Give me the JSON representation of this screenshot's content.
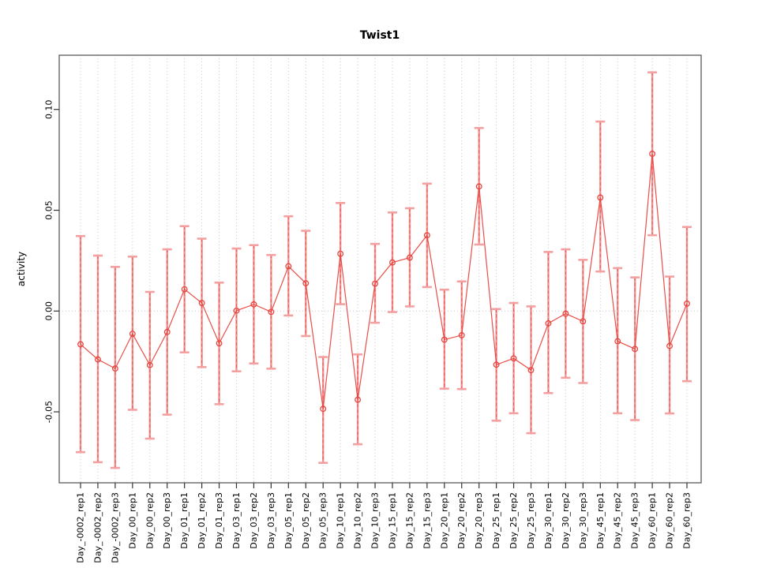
{
  "chart_data": {
    "type": "line",
    "title": "Twist1",
    "xlabel": "",
    "ylabel": "activity",
    "legend": "none",
    "grid": "vertical dotted gridline at each category; horizontal dotted line at y=0",
    "marker": "open-circle",
    "error_bars": true,
    "yticks": [
      -0.05,
      0.0,
      0.05,
      0.1
    ],
    "ylim": [
      -0.0852,
      0.1269
    ],
    "categories": [
      "Day_-0002_rep1",
      "Day_-0002_rep2",
      "Day_-0002_rep3",
      "Day_00_rep1",
      "Day_00_rep2",
      "Day_00_rep3",
      "Day_01_rep1",
      "Day_01_rep2",
      "Day_01_rep3",
      "Day_03_rep1",
      "Day_03_rep2",
      "Day_03_rep3",
      "Day_05_rep1",
      "Day_05_rep2",
      "Day_05_rep3",
      "Day_10_rep1",
      "Day_10_rep2",
      "Day_10_rep3",
      "Day_15_rep1",
      "Day_15_rep2",
      "Day_15_rep3",
      "Day_20_rep1",
      "Day_20_rep2",
      "Day_20_rep3",
      "Day_25_rep1",
      "Day_25_rep2",
      "Day_25_rep3",
      "Day_30_rep1",
      "Day_30_rep2",
      "Day_30_rep3",
      "Day_45_rep1",
      "Day_45_rep2",
      "Day_45_rep3",
      "Day_60_rep1",
      "Day_60_rep2",
      "Day_60_rep3"
    ],
    "values": [
      -0.0165,
      -0.024,
      -0.0285,
      -0.0113,
      -0.0268,
      -0.0104,
      0.0108,
      0.004,
      -0.016,
      0.0002,
      0.0033,
      -0.0004,
      0.0222,
      0.0138,
      -0.0485,
      0.0284,
      -0.044,
      0.0136,
      0.0241,
      0.0265,
      0.0376,
      -0.0142,
      -0.012,
      0.0618,
      -0.0266,
      -0.0235,
      -0.0293,
      -0.0061,
      -0.0013,
      -0.0051,
      0.0563,
      -0.015,
      -0.0188,
      0.078,
      -0.0173,
      0.0037
    ],
    "error_upper": [
      0.0372,
      0.0275,
      0.0219,
      0.027,
      0.0095,
      0.0306,
      0.0421,
      0.0359,
      0.0141,
      0.031,
      0.0327,
      0.0278,
      0.047,
      0.0398,
      -0.0228,
      0.0536,
      -0.0215,
      0.0333,
      0.0489,
      0.051,
      0.0632,
      0.0106,
      0.0147,
      0.0908,
      0.001,
      0.004,
      0.0023,
      0.0293,
      0.0306,
      0.0254,
      0.094,
      0.0213,
      0.0167,
      0.1184,
      0.0171,
      0.0417
    ],
    "error_lower": [
      -0.07,
      -0.075,
      -0.0778,
      -0.049,
      -0.0633,
      -0.0514,
      -0.0205,
      -0.0278,
      -0.0462,
      -0.0299,
      -0.026,
      -0.0286,
      -0.0022,
      -0.0124,
      -0.0753,
      0.0034,
      -0.0661,
      -0.0058,
      -0.0005,
      0.0023,
      0.0119,
      -0.0385,
      -0.0387,
      0.033,
      -0.0544,
      -0.0507,
      -0.0606,
      -0.0407,
      -0.0331,
      -0.0357,
      0.0196,
      -0.0507,
      -0.0541,
      0.0376,
      -0.0508,
      -0.0348
    ],
    "colors": {
      "line": "#e8453f",
      "point": "#e8453f",
      "whisker_stem": "#f08080",
      "whisker_dash": "#e8534e",
      "whisker_cap": "#f5a0a0",
      "gridline": "#c9c9c9",
      "zero_line": "#c9c9c9",
      "box": "#666666",
      "tick": "#333333",
      "text": "#000000",
      "background": "#ffffff"
    }
  }
}
